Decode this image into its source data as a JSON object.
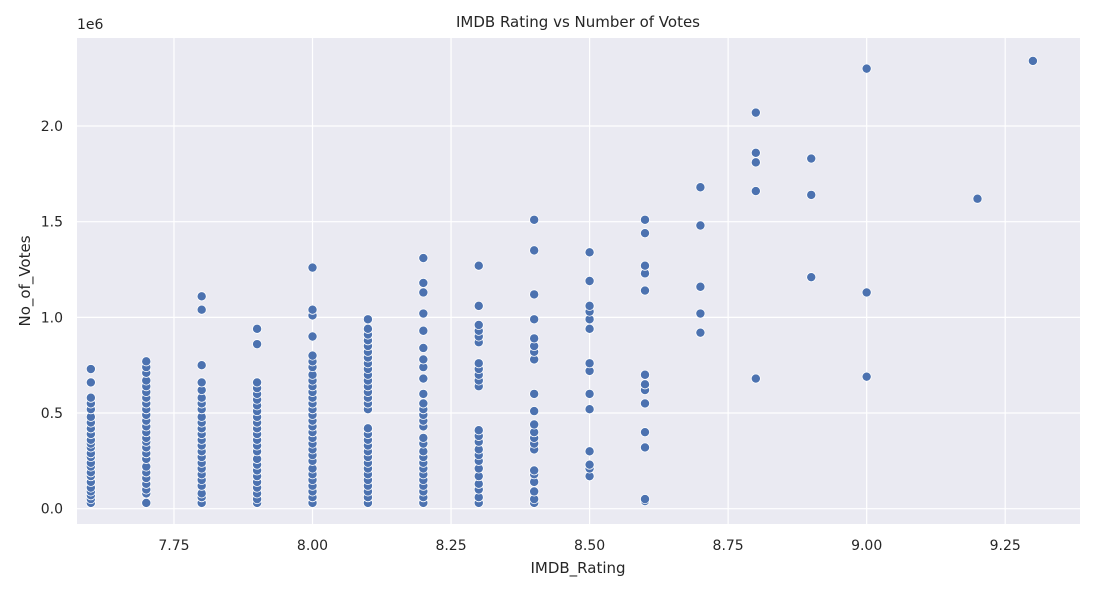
{
  "chart_data": {
    "type": "scatter",
    "title": "IMDB Rating vs Number of Votes",
    "xlabel": "IMDB_Rating",
    "ylabel": "No_of_Votes",
    "y_offset_label": "1e6",
    "xlim": [
      7.575,
      9.385
    ],
    "ylim": [
      -0.08,
      2.46
    ],
    "xticks": [
      7.75,
      8.0,
      8.25,
      8.5,
      8.75,
      9.0,
      9.25
    ],
    "xtick_labels": [
      "7.75",
      "8.00",
      "8.25",
      "8.50",
      "8.75",
      "9.00",
      "9.25"
    ],
    "yticks": [
      0.0,
      0.5,
      1.0,
      1.5,
      2.0
    ],
    "ytick_labels": [
      "0.0",
      "0.5",
      "1.0",
      "1.5",
      "2.0"
    ],
    "y_unit_multiplier": 1000000,
    "grid": true,
    "style": "seaborn-darkgrid",
    "marker_color": "#4c72b0",
    "background_color": "#eaeaf2",
    "series": [
      {
        "points": [
          [
            7.6,
            0.03
          ],
          [
            7.6,
            0.05
          ],
          [
            7.6,
            0.07
          ],
          [
            7.6,
            0.09
          ],
          [
            7.6,
            0.11
          ],
          [
            7.6,
            0.14
          ],
          [
            7.6,
            0.17
          ],
          [
            7.6,
            0.19
          ],
          [
            7.6,
            0.22
          ],
          [
            7.6,
            0.24
          ],
          [
            7.6,
            0.27
          ],
          [
            7.6,
            0.29
          ],
          [
            7.6,
            0.32
          ],
          [
            7.6,
            0.34
          ],
          [
            7.6,
            0.36
          ],
          [
            7.6,
            0.39
          ],
          [
            7.6,
            0.42
          ],
          [
            7.6,
            0.45
          ],
          [
            7.6,
            0.48
          ],
          [
            7.6,
            0.52
          ],
          [
            7.6,
            0.55
          ],
          [
            7.6,
            0.58
          ],
          [
            7.6,
            0.66
          ],
          [
            7.6,
            0.73
          ],
          [
            7.7,
            0.03
          ],
          [
            7.7,
            0.08
          ],
          [
            7.7,
            0.1
          ],
          [
            7.7,
            0.13
          ],
          [
            7.7,
            0.16
          ],
          [
            7.7,
            0.19
          ],
          [
            7.7,
            0.22
          ],
          [
            7.7,
            0.26
          ],
          [
            7.7,
            0.29
          ],
          [
            7.7,
            0.32
          ],
          [
            7.7,
            0.35
          ],
          [
            7.7,
            0.37
          ],
          [
            7.7,
            0.4
          ],
          [
            7.7,
            0.43
          ],
          [
            7.7,
            0.46
          ],
          [
            7.7,
            0.49
          ],
          [
            7.7,
            0.52
          ],
          [
            7.7,
            0.55
          ],
          [
            7.7,
            0.58
          ],
          [
            7.7,
            0.61
          ],
          [
            7.7,
            0.64
          ],
          [
            7.7,
            0.67
          ],
          [
            7.7,
            0.71
          ],
          [
            7.7,
            0.74
          ],
          [
            7.7,
            0.77
          ],
          [
            7.8,
            0.03
          ],
          [
            7.8,
            0.06
          ],
          [
            7.8,
            0.08
          ],
          [
            7.8,
            0.12
          ],
          [
            7.8,
            0.15
          ],
          [
            7.8,
            0.18
          ],
          [
            7.8,
            0.21
          ],
          [
            7.8,
            0.24
          ],
          [
            7.8,
            0.27
          ],
          [
            7.8,
            0.3
          ],
          [
            7.8,
            0.33
          ],
          [
            7.8,
            0.36
          ],
          [
            7.8,
            0.39
          ],
          [
            7.8,
            0.42
          ],
          [
            7.8,
            0.45
          ],
          [
            7.8,
            0.48
          ],
          [
            7.8,
            0.52
          ],
          [
            7.8,
            0.55
          ],
          [
            7.8,
            0.58
          ],
          [
            7.8,
            0.62
          ],
          [
            7.8,
            0.66
          ],
          [
            7.8,
            0.75
          ],
          [
            7.8,
            1.04
          ],
          [
            7.8,
            1.11
          ],
          [
            7.9,
            0.03
          ],
          [
            7.9,
            0.05
          ],
          [
            7.9,
            0.08
          ],
          [
            7.9,
            0.11
          ],
          [
            7.9,
            0.14
          ],
          [
            7.9,
            0.17
          ],
          [
            7.9,
            0.2
          ],
          [
            7.9,
            0.23
          ],
          [
            7.9,
            0.26
          ],
          [
            7.9,
            0.3
          ],
          [
            7.9,
            0.33
          ],
          [
            7.9,
            0.36
          ],
          [
            7.9,
            0.39
          ],
          [
            7.9,
            0.42
          ],
          [
            7.9,
            0.45
          ],
          [
            7.9,
            0.48
          ],
          [
            7.9,
            0.51
          ],
          [
            7.9,
            0.54
          ],
          [
            7.9,
            0.57
          ],
          [
            7.9,
            0.6
          ],
          [
            7.9,
            0.63
          ],
          [
            7.9,
            0.66
          ],
          [
            7.9,
            0.86
          ],
          [
            7.9,
            0.94
          ],
          [
            8.0,
            0.03
          ],
          [
            8.0,
            0.06
          ],
          [
            8.0,
            0.09
          ],
          [
            8.0,
            0.12
          ],
          [
            8.0,
            0.15
          ],
          [
            8.0,
            0.18
          ],
          [
            8.0,
            0.21
          ],
          [
            8.0,
            0.25
          ],
          [
            8.0,
            0.28
          ],
          [
            8.0,
            0.31
          ],
          [
            8.0,
            0.34
          ],
          [
            8.0,
            0.37
          ],
          [
            8.0,
            0.4
          ],
          [
            8.0,
            0.43
          ],
          [
            8.0,
            0.46
          ],
          [
            8.0,
            0.49
          ],
          [
            8.0,
            0.52
          ],
          [
            8.0,
            0.55
          ],
          [
            8.0,
            0.58
          ],
          [
            8.0,
            0.61
          ],
          [
            8.0,
            0.64
          ],
          [
            8.0,
            0.67
          ],
          [
            8.0,
            0.7
          ],
          [
            8.0,
            0.74
          ],
          [
            8.0,
            0.77
          ],
          [
            8.0,
            0.8
          ],
          [
            8.0,
            0.9
          ],
          [
            8.0,
            1.01
          ],
          [
            8.0,
            1.04
          ],
          [
            8.0,
            1.26
          ],
          [
            8.1,
            0.03
          ],
          [
            8.1,
            0.06
          ],
          [
            8.1,
            0.09
          ],
          [
            8.1,
            0.12
          ],
          [
            8.1,
            0.15
          ],
          [
            8.1,
            0.18
          ],
          [
            8.1,
            0.21
          ],
          [
            8.1,
            0.24
          ],
          [
            8.1,
            0.27
          ],
          [
            8.1,
            0.3
          ],
          [
            8.1,
            0.33
          ],
          [
            8.1,
            0.36
          ],
          [
            8.1,
            0.39
          ],
          [
            8.1,
            0.42
          ],
          [
            8.1,
            0.52
          ],
          [
            8.1,
            0.55
          ],
          [
            8.1,
            0.58
          ],
          [
            8.1,
            0.61
          ],
          [
            8.1,
            0.64
          ],
          [
            8.1,
            0.67
          ],
          [
            8.1,
            0.7
          ],
          [
            8.1,
            0.73
          ],
          [
            8.1,
            0.76
          ],
          [
            8.1,
            0.79
          ],
          [
            8.1,
            0.82
          ],
          [
            8.1,
            0.85
          ],
          [
            8.1,
            0.88
          ],
          [
            8.1,
            0.91
          ],
          [
            8.1,
            0.94
          ],
          [
            8.1,
            0.99
          ],
          [
            8.2,
            0.03
          ],
          [
            8.2,
            0.06
          ],
          [
            8.2,
            0.09
          ],
          [
            8.2,
            0.12
          ],
          [
            8.2,
            0.15
          ],
          [
            8.2,
            0.18
          ],
          [
            8.2,
            0.21
          ],
          [
            8.2,
            0.24
          ],
          [
            8.2,
            0.27
          ],
          [
            8.2,
            0.3
          ],
          [
            8.2,
            0.34
          ],
          [
            8.2,
            0.37
          ],
          [
            8.2,
            0.43
          ],
          [
            8.2,
            0.46
          ],
          [
            8.2,
            0.49
          ],
          [
            8.2,
            0.52
          ],
          [
            8.2,
            0.55
          ],
          [
            8.2,
            0.6
          ],
          [
            8.2,
            0.68
          ],
          [
            8.2,
            0.74
          ],
          [
            8.2,
            0.78
          ],
          [
            8.2,
            0.84
          ],
          [
            8.2,
            0.93
          ],
          [
            8.2,
            1.02
          ],
          [
            8.2,
            1.13
          ],
          [
            8.2,
            1.18
          ],
          [
            8.2,
            1.31
          ],
          [
            8.3,
            0.03
          ],
          [
            8.3,
            0.06
          ],
          [
            8.3,
            0.1
          ],
          [
            8.3,
            0.13
          ],
          [
            8.3,
            0.17
          ],
          [
            8.3,
            0.21
          ],
          [
            8.3,
            0.25
          ],
          [
            8.3,
            0.28
          ],
          [
            8.3,
            0.31
          ],
          [
            8.3,
            0.35
          ],
          [
            8.3,
            0.38
          ],
          [
            8.3,
            0.41
          ],
          [
            8.3,
            0.64
          ],
          [
            8.3,
            0.67
          ],
          [
            8.3,
            0.7
          ],
          [
            8.3,
            0.73
          ],
          [
            8.3,
            0.76
          ],
          [
            8.3,
            0.87
          ],
          [
            8.3,
            0.9
          ],
          [
            8.3,
            0.93
          ],
          [
            8.3,
            0.96
          ],
          [
            8.3,
            1.06
          ],
          [
            8.3,
            1.27
          ],
          [
            8.4,
            0.03
          ],
          [
            8.4,
            0.05
          ],
          [
            8.4,
            0.09
          ],
          [
            8.4,
            0.14
          ],
          [
            8.4,
            0.18
          ],
          [
            8.4,
            0.2
          ],
          [
            8.4,
            0.31
          ],
          [
            8.4,
            0.34
          ],
          [
            8.4,
            0.37
          ],
          [
            8.4,
            0.4
          ],
          [
            8.4,
            0.44
          ],
          [
            8.4,
            0.51
          ],
          [
            8.4,
            0.6
          ],
          [
            8.4,
            0.78
          ],
          [
            8.4,
            0.82
          ],
          [
            8.4,
            0.85
          ],
          [
            8.4,
            0.89
          ],
          [
            8.4,
            0.99
          ],
          [
            8.4,
            1.12
          ],
          [
            8.4,
            1.35
          ],
          [
            8.4,
            1.51
          ],
          [
            8.5,
            0.17
          ],
          [
            8.5,
            0.21
          ],
          [
            8.5,
            0.23
          ],
          [
            8.5,
            0.3
          ],
          [
            8.5,
            0.52
          ],
          [
            8.5,
            0.6
          ],
          [
            8.5,
            0.72
          ],
          [
            8.5,
            0.76
          ],
          [
            8.5,
            0.94
          ],
          [
            8.5,
            0.99
          ],
          [
            8.5,
            1.03
          ],
          [
            8.5,
            1.06
          ],
          [
            8.5,
            1.19
          ],
          [
            8.5,
            1.34
          ],
          [
            8.6,
            0.04
          ],
          [
            8.6,
            0.05
          ],
          [
            8.6,
            0.32
          ],
          [
            8.6,
            0.4
          ],
          [
            8.6,
            0.55
          ],
          [
            8.6,
            0.62
          ],
          [
            8.6,
            0.65
          ],
          [
            8.6,
            0.7
          ],
          [
            8.6,
            1.14
          ],
          [
            8.6,
            1.23
          ],
          [
            8.6,
            1.27
          ],
          [
            8.6,
            1.44
          ],
          [
            8.6,
            1.51
          ],
          [
            8.7,
            0.92
          ],
          [
            8.7,
            1.02
          ],
          [
            8.7,
            1.16
          ],
          [
            8.7,
            1.48
          ],
          [
            8.7,
            1.68
          ],
          [
            8.8,
            0.68
          ],
          [
            8.8,
            1.66
          ],
          [
            8.8,
            1.81
          ],
          [
            8.8,
            1.86
          ],
          [
            8.8,
            2.07
          ],
          [
            8.9,
            1.21
          ],
          [
            8.9,
            1.64
          ],
          [
            8.9,
            1.83
          ],
          [
            9.0,
            0.69
          ],
          [
            9.0,
            1.13
          ],
          [
            9.0,
            2.3
          ],
          [
            9.2,
            1.62
          ],
          [
            9.3,
            2.34
          ]
        ]
      }
    ]
  }
}
